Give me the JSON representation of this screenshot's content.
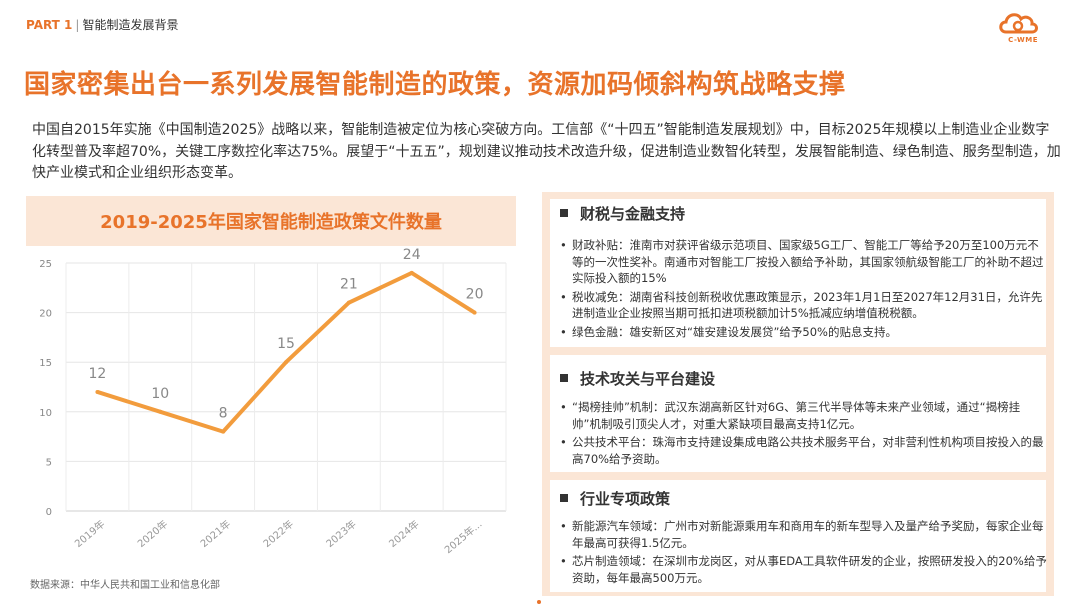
{
  "header": {
    "part": "PART 1",
    "section": "智能制造发展背景"
  },
  "logo": {
    "text": "C-WME",
    "color": "#e8732a"
  },
  "title": "国家密集出台一系列发展智能制造的政策，资源加码倾斜构筑战略支撑",
  "intro": "中国自2015年实施《中国制造2025》战略以来，智能制造被定位为核心突破方向。工信部《“十四五”智能制造发展规划》中，目标2025年规模以上制造业企业数字化转型普及率超70%，关键工序数控化率达75%。展望于“十五五”，规划建议推动技术改造升级，促进制造业数智化转型，发展智能制造、绿色制造、服务型制造，加快产业模式和企业组织形态变革。",
  "chart_data": {
    "type": "line",
    "title": "2019-2025年国家智能制造政策文件数量",
    "categories": [
      "2019年",
      "2020年",
      "2021年",
      "2022年",
      "2023年",
      "2024年",
      "2025年..."
    ],
    "values": [
      12,
      10,
      8,
      15,
      21,
      24,
      20
    ],
    "ylim": [
      0,
      25
    ],
    "yticks": [
      0,
      5,
      10,
      15,
      20,
      25
    ],
    "grid": true,
    "line_color": "#f29c3d",
    "xlabel": "",
    "ylabel": ""
  },
  "source": "数据来源：中华人民共和国工业和信息化部",
  "sections": [
    {
      "heading": "财税与金融支持",
      "bullets": [
        "财政补贴：淮南市对获评省级示范项目、国家级5G工厂、智能工厂等给予20万至100万元不等的一次性奖补。南通市对智能工厂按投入额给予补助，其国家领航级智能工厂的补助不超过实际投入额的15%",
        "税收减免：湖南省科技创新税收优惠政策显示，2023年1月1日至2027年12月31日，允许先进制造业企业按照当期可抵扣进项税额加计5%抵减应纳增值税税额。",
        "绿色金融：雄安新区对“雄安建设发展贷”给予50%的贴息支持。"
      ]
    },
    {
      "heading": "技术攻关与平台建设",
      "bullets": [
        "“揭榜挂帅”机制：武汉东湖高新区针对6G、第三代半导体等未来产业领域，通过“揭榜挂帅”机制吸引顶尖人才，对重大紧缺项目最高支持1亿元。",
        "公共技术平台：珠海市支持建设集成电路公共技术服务平台，对非营利性机构项目按投入的最高70%给予资助。"
      ]
    },
    {
      "heading": "行业专项政策",
      "bullets": [
        "新能源汽车领域：广州市对新能源乘用车和商用车的新车型导入及量产给予奖励，每家企业每年最高可获得1.5亿元。",
        "芯片制造领域：在深圳市龙岗区，对从事EDA工具软件研发的企业，按照研发投入的20%给予资助，每年最高500万元。"
      ]
    }
  ]
}
